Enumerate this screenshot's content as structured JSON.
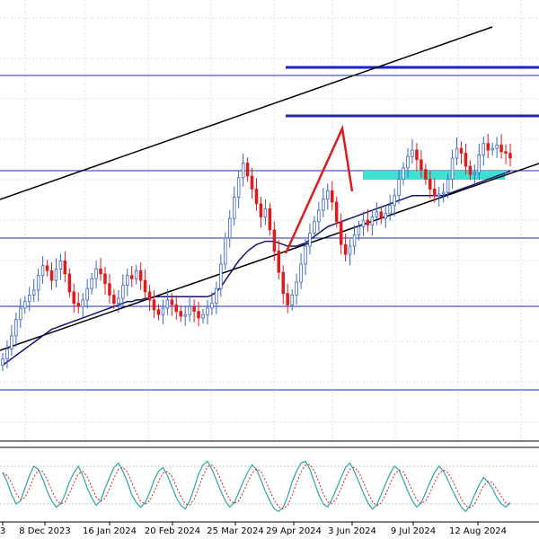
{
  "chart_data": [
    {
      "type": "candlestick",
      "title": "",
      "xlabel": "",
      "ylabel": "",
      "x_tick_labels": [
        "3",
        "8 Dec 2023",
        "16 Jan 2024",
        "20 Feb 2024",
        "25 Mar 2024",
        "29 Apr 2024",
        "3 Jun 2024",
        "9 Jul 2024",
        "12 Aug 2024"
      ],
      "colors": {
        "bull_candle": "#3a64c8",
        "bear_candle": "#e01b1b",
        "moving_average": "#14146e",
        "channel_lines": "#000000",
        "horizontal_levels": "#1f2bb0",
        "support_zone": "#40e0d0",
        "drawn_pattern": "#e01b1b",
        "gridlines": "#e2e6f2"
      },
      "price_series": {
        "name": "",
        "close": [
          1.0,
          1.6,
          2.4,
          3.4,
          4.1,
          4.5,
          4.9,
          5.2,
          6.1,
          6.7,
          6.4,
          5.8,
          6.5,
          7.0,
          6.2,
          5.1,
          4.4,
          4.2,
          4.6,
          5.3,
          5.9,
          6.5,
          6.2,
          5.6,
          4.9,
          4.4,
          4.7,
          5.5,
          6.1,
          5.9,
          6.4,
          5.8,
          5.1,
          4.6,
          4.0,
          3.7,
          4.1,
          4.6,
          4.3,
          3.9,
          3.6,
          3.7,
          4.2,
          3.9,
          3.5,
          3.7,
          4.1,
          4.4,
          5.3,
          6.8,
          8.4,
          9.6,
          10.9,
          12.1,
          13.0,
          12.2,
          11.4,
          10.5,
          9.7,
          10.2,
          8.9,
          7.6,
          6.3,
          5.0,
          4.3,
          4.9,
          5.7,
          6.8,
          7.9,
          8.7,
          9.4,
          10.1,
          10.8,
          11.3,
          10.6,
          9.4,
          8.0,
          7.4,
          7.9,
          8.6,
          9.1,
          9.5,
          9.2,
          9.7,
          10.0,
          9.6,
          9.9,
          10.4,
          11.0,
          12.0,
          12.7,
          13.4,
          13.8,
          13.2,
          12.6,
          12.0,
          11.4,
          11.0,
          11.1,
          11.2,
          12.0,
          13.3,
          13.9,
          13.6,
          12.8,
          12.3,
          12.4,
          13.5,
          14.2,
          13.8,
          13.9,
          14.1,
          13.7,
          13.6,
          13.3
        ]
      },
      "moving_average": {
        "name": "",
        "values": [
          0.6,
          0.8,
          1.0,
          1.2,
          1.4,
          1.6,
          1.8,
          2.0,
          2.2,
          2.4,
          2.6,
          2.8,
          2.9,
          3.0,
          3.1,
          3.2,
          3.3,
          3.4,
          3.5,
          3.6,
          3.7,
          3.8,
          3.9,
          4.0,
          4.1,
          4.2,
          4.3,
          4.4,
          4.5,
          4.5,
          4.6,
          4.6,
          4.7,
          4.7,
          4.8,
          4.8,
          4.8,
          4.8,
          4.8,
          4.8,
          4.8,
          4.8,
          4.8,
          4.8,
          4.8,
          4.8,
          4.8,
          4.9,
          5.1,
          5.4,
          5.8,
          6.2,
          6.6,
          7.0,
          7.3,
          7.6,
          7.8,
          8.0,
          8.1,
          8.2,
          8.2,
          8.2,
          8.1,
          8.0,
          7.9,
          7.9,
          7.9,
          8.0,
          8.1,
          8.3,
          8.5,
          8.7,
          8.9,
          9.1,
          9.2,
          9.3,
          9.4,
          9.5,
          9.6,
          9.7,
          9.8,
          9.9,
          10.0,
          10.1,
          10.2,
          10.3,
          10.4,
          10.5,
          10.6,
          10.7,
          10.8,
          10.9,
          11.0,
          11.0,
          11.0,
          11.0,
          11.0,
          11.0,
          11.0,
          11.0,
          11.1,
          11.2,
          11.3,
          11.4,
          11.5,
          11.6,
          11.7,
          11.8,
          11.9,
          12.0,
          12.1,
          12.2,
          12.3,
          12.4,
          12.5
        ]
      },
      "stochastic_oscillator": {
        "main_line": [
          70,
          55,
          35,
          20,
          25,
          45,
          65,
          80,
          75,
          60,
          40,
          25,
          15,
          20,
          35,
          55,
          70,
          80,
          65,
          45,
          30,
          18,
          25,
          45,
          62,
          78,
          85,
          72,
          55,
          35,
          22,
          15,
          22,
          38,
          58,
          72,
          78,
          65,
          48,
          30,
          18,
          12,
          25,
          45,
          68,
          82,
          88,
          75,
          58,
          40,
          25,
          15,
          22,
          38,
          55,
          70,
          82,
          75,
          58,
          40,
          25,
          12,
          8,
          15,
          32,
          55,
          72,
          85,
          88,
          75,
          55,
          35,
          20,
          15,
          28,
          45,
          62,
          78,
          85,
          72,
          55,
          38,
          22,
          12,
          18,
          35,
          52,
          68,
          80,
          74,
          58,
          40,
          25,
          15,
          22,
          38,
          55,
          70,
          80,
          72,
          58,
          42,
          28,
          15,
          8,
          18,
          35,
          50,
          62,
          55,
          45,
          30,
          20,
          15,
          22
        ]
      }
    }
  ]
}
